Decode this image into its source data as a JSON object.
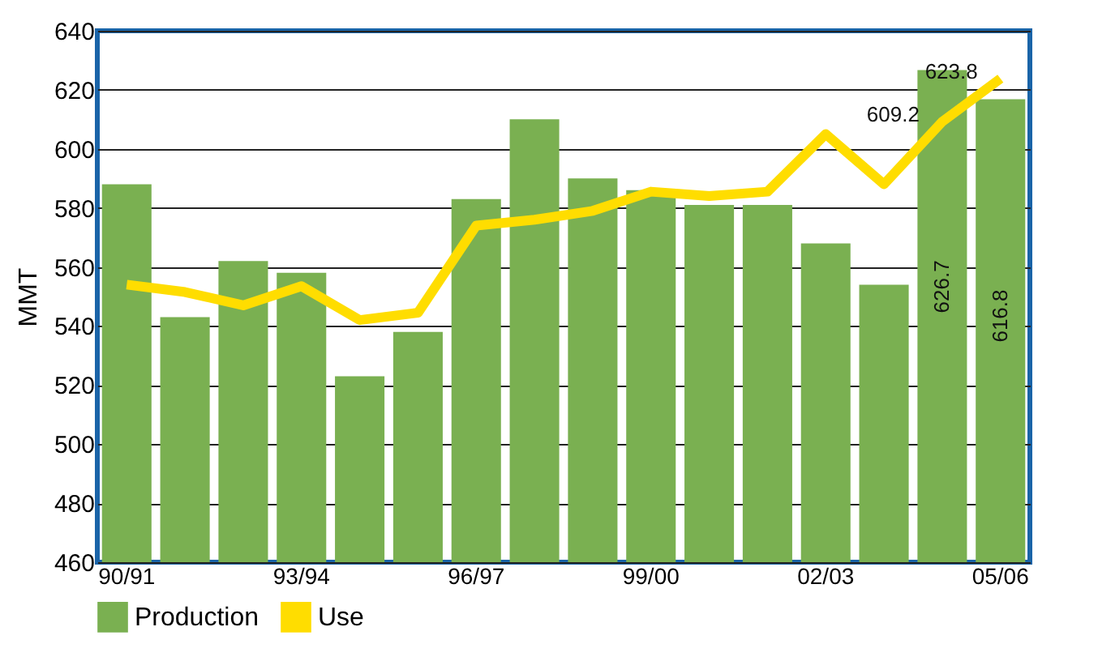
{
  "chart_data": {
    "type": "bar",
    "ylabel": "MMT",
    "categories": [
      "90/91",
      null,
      null,
      "93/94",
      null,
      null,
      "96/97",
      null,
      null,
      "99/00",
      null,
      null,
      "02/03",
      null,
      null,
      "05/06"
    ],
    "series": [
      {
        "name": "Production",
        "color": "#7ab051",
        "values": [
          588,
          543,
          562,
          558,
          523,
          538,
          583,
          610,
          590,
          586,
          581,
          581,
          568,
          554,
          626.7,
          616.8
        ],
        "value_labels": [
          null,
          null,
          null,
          null,
          null,
          null,
          null,
          null,
          null,
          null,
          null,
          null,
          null,
          null,
          "626.7",
          "616.8"
        ]
      },
      {
        "name": "Use",
        "type": "line",
        "color": "#ffdd00",
        "values": [
          554,
          551.5,
          547,
          553.5,
          542,
          544.5,
          574,
          576,
          579,
          585.5,
          584,
          585.5,
          605,
          588,
          609.2,
          623.8
        ],
        "value_labels": [
          null,
          null,
          null,
          null,
          null,
          null,
          null,
          null,
          null,
          null,
          null,
          null,
          null,
          null,
          "609.2",
          "623.8"
        ]
      }
    ],
    "ylim": [
      460,
      640
    ],
    "yticks": [
      460,
      480,
      500,
      520,
      540,
      560,
      580,
      600,
      620,
      640
    ],
    "grid": "y",
    "legend": "bottom"
  }
}
